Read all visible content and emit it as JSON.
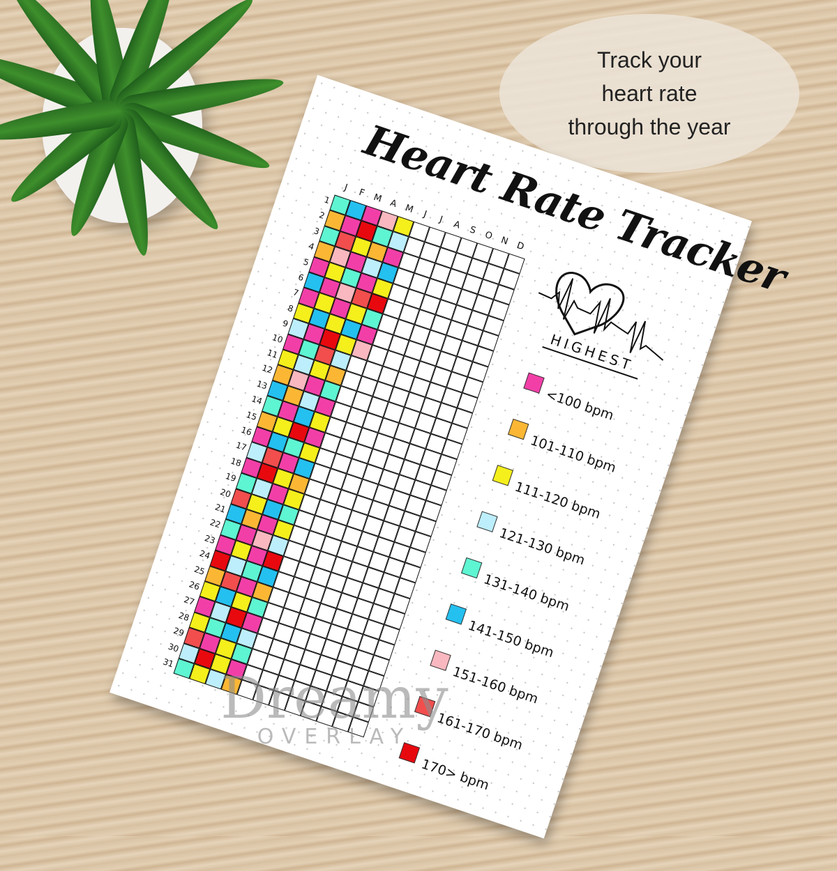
{
  "callout": {
    "lines": [
      "Track your",
      "heart rate",
      "through the year"
    ]
  },
  "tracker": {
    "title": "Heart Rate Tracker",
    "months": [
      "J",
      "F",
      "M",
      "A",
      "M",
      "J",
      "J",
      "A",
      "S",
      "O",
      "N",
      "D"
    ],
    "days": [
      "1",
      "2",
      "3",
      "4",
      "5",
      "6",
      "7",
      "8",
      "9",
      "10",
      "11",
      "12",
      "13",
      "14",
      "15",
      "16",
      "17",
      "18",
      "19",
      "20",
      "21",
      "22",
      "23",
      "24",
      "25",
      "26",
      "27",
      "28",
      "29",
      "30",
      "31"
    ],
    "grid": [
      [
        "T",
        "B",
        "P",
        "S",
        "Y"
      ],
      [
        "O",
        "P",
        "D",
        "T",
        "L"
      ],
      [
        "T",
        "R",
        "Y",
        "O",
        "P"
      ],
      [
        "O",
        "S",
        "P",
        "L",
        "B"
      ],
      [
        "P",
        "Y",
        "T",
        "P",
        "Y"
      ],
      [
        "B",
        "P",
        "S",
        "R",
        "D"
      ],
      [
        "P",
        "Y",
        "P",
        "Y",
        "T"
      ],
      [
        "Y",
        "B",
        "Y",
        "B",
        "P"
      ],
      [
        "L",
        "P",
        "D",
        "Y",
        "S"
      ],
      [
        "P",
        "T",
        "R",
        "L"
      ],
      [
        "Y",
        "L",
        "Y",
        "O"
      ],
      [
        "O",
        "S",
        "P",
        "T"
      ],
      [
        "B",
        "O",
        "L",
        "P"
      ],
      [
        "T",
        "P",
        "B",
        "Y"
      ],
      [
        "O",
        "Y",
        "D",
        "P"
      ],
      [
        "P",
        "B",
        "T",
        "Y"
      ],
      [
        "L",
        "R",
        "P",
        "B"
      ],
      [
        "P",
        "D",
        "Y",
        "O"
      ],
      [
        "T",
        "L",
        "P",
        "Y"
      ],
      [
        "R",
        "Y",
        "B",
        "T"
      ],
      [
        "B",
        "O",
        "P",
        "Y"
      ],
      [
        "T",
        "P",
        "S",
        "L"
      ],
      [
        "P",
        "Y",
        "P",
        "D"
      ],
      [
        "D",
        "L",
        "T",
        "B"
      ],
      [
        "O",
        "R",
        "P",
        "O"
      ],
      [
        "Y",
        "B",
        "Y",
        "T"
      ],
      [
        "P",
        "L",
        "D",
        "P"
      ],
      [
        "Y",
        "T",
        "B",
        "L"
      ],
      [
        "R",
        "P",
        "Y",
        "T"
      ],
      [
        "L",
        "D",
        "Y",
        "P"
      ],
      [
        "T",
        "Y",
        "L",
        "O"
      ]
    ],
    "legend_heading": "HIGHEST",
    "legend": [
      {
        "code": "P",
        "label": "<100 bpm",
        "color": "#f23fa8"
      },
      {
        "code": "O",
        "label": "101-110 bpm",
        "color": "#fbb734"
      },
      {
        "code": "Y",
        "label": "111-120 bpm",
        "color": "#f5ef1c"
      },
      {
        "code": "L",
        "label": "121-130 bpm",
        "color": "#bdeefb"
      },
      {
        "code": "T",
        "label": "131-140 bpm",
        "color": "#5ef5d2"
      },
      {
        "code": "B",
        "label": "141-150 bpm",
        "color": "#24c0f0"
      },
      {
        "code": "S",
        "label": "151-160 bpm",
        "color": "#f9b8bf"
      },
      {
        "code": "R",
        "label": "161-170 bpm",
        "color": "#f24e4e"
      },
      {
        "code": "D",
        "label": "170> bpm",
        "color": "#e8090f"
      }
    ],
    "icon": "heart-pulse-icon"
  },
  "watermark": {
    "line1": "Dreamy",
    "line2": "OVERLAY"
  }
}
